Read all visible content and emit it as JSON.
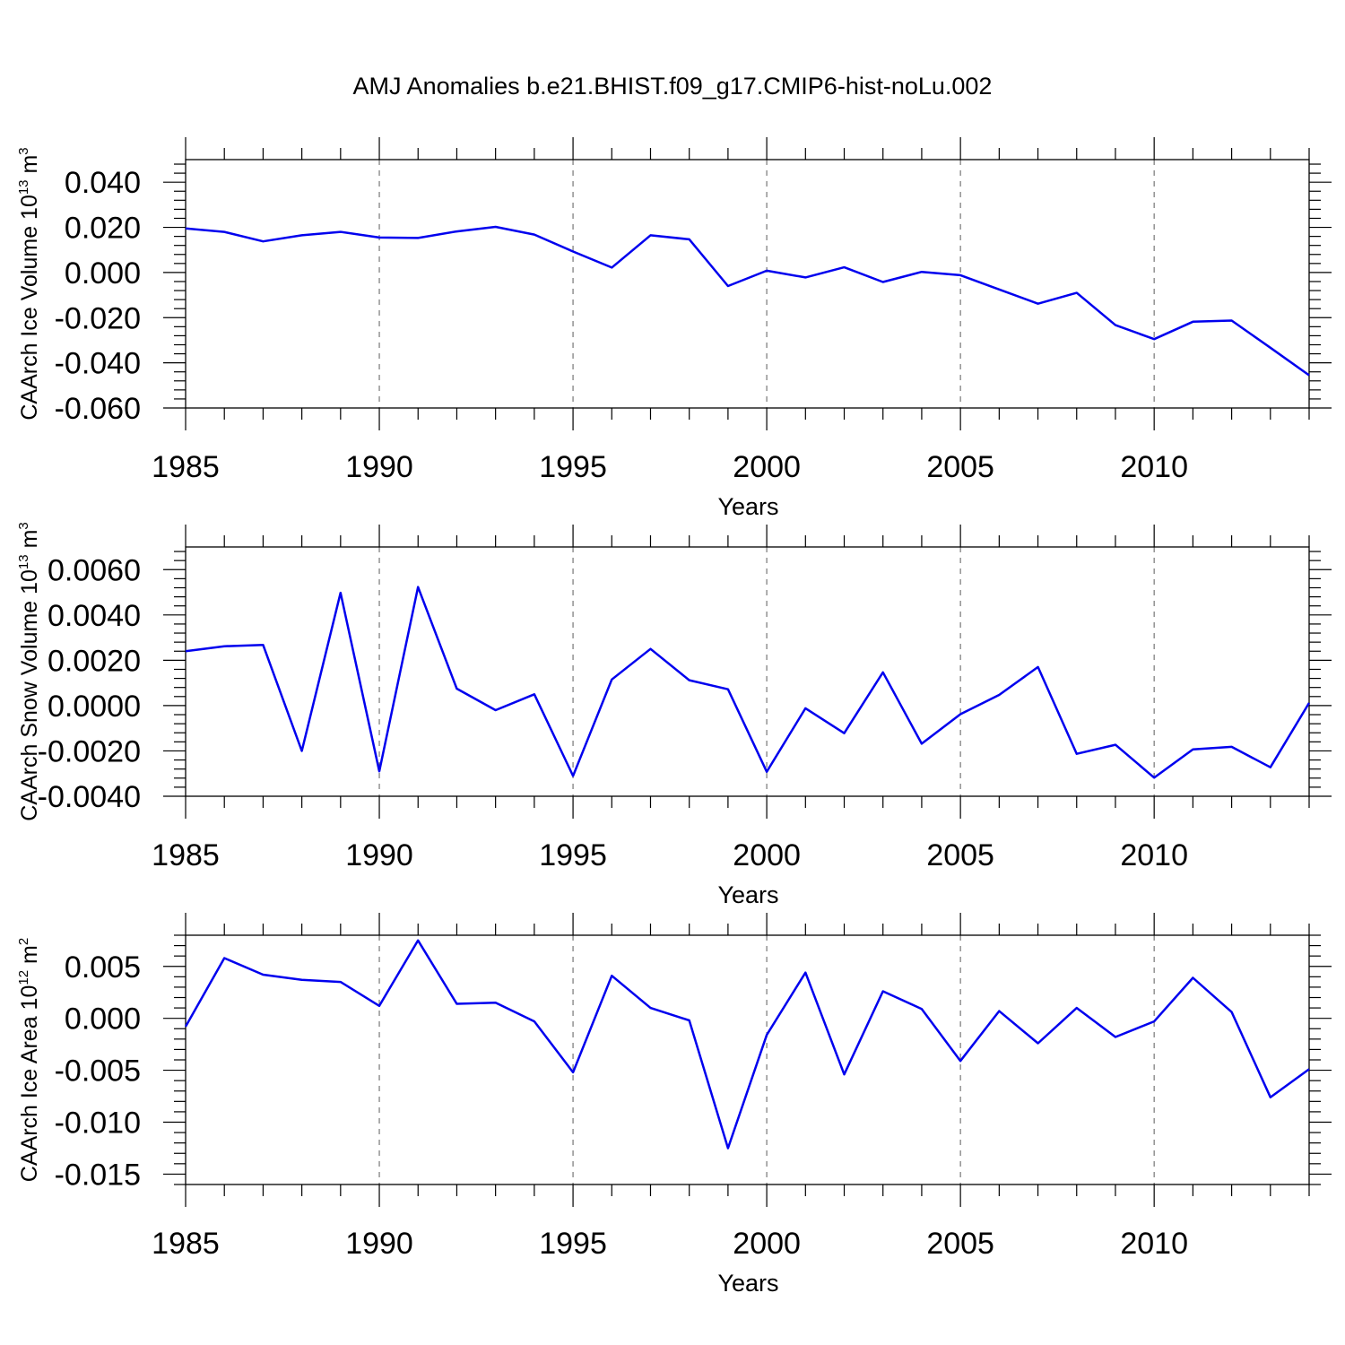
{
  "chart_data": {
    "title": "AMJ Anomalies b.e21.BHIST.f09_g17.CMIP6-hist-noLu.002",
    "line_color": "#0000ee",
    "panels": [
      {
        "type": "line",
        "ylabel": "CAArch Ice Volume 10",
        "yunit_exp": "13",
        "yunit_base": "m",
        "yunit_pow": "3",
        "xlabel": "Years",
        "xlim": [
          1985,
          2014
        ],
        "ylim": [
          -0.06,
          0.05
        ],
        "yticks": [
          0.04,
          0.02,
          0.0,
          -0.02,
          -0.04,
          -0.06
        ],
        "ytick_labels": [
          "0.040",
          "0.020",
          "0.000",
          "-0.020",
          "-0.040",
          "-0.060"
        ],
        "xticks": [
          1985,
          1990,
          1995,
          2000,
          2005,
          2010
        ],
        "xtick_labels": [
          "1985",
          "1990",
          "1995",
          "2000",
          "2005",
          "2010"
        ],
        "x": [
          1985,
          1986,
          1987,
          1988,
          1989,
          1990,
          1991,
          1992,
          1993,
          1994,
          1995,
          1996,
          1997,
          1998,
          1999,
          2000,
          2001,
          2002,
          2003,
          2004,
          2005,
          2006,
          2007,
          2008,
          2009,
          2010,
          2011,
          2012,
          2013,
          2014
        ],
        "y": [
          0.0195,
          0.018,
          0.0138,
          0.0165,
          0.018,
          0.0155,
          0.0153,
          0.0182,
          0.0202,
          0.0168,
          0.0093,
          0.0022,
          0.0165,
          0.0147,
          -0.006,
          0.0008,
          -0.0022,
          0.0023,
          -0.0042,
          0.0003,
          -0.0012,
          -0.0075,
          -0.0138,
          -0.009,
          -0.0233,
          -0.0295,
          -0.0218,
          -0.0213,
          -0.0333,
          -0.0455
        ]
      },
      {
        "type": "line",
        "ylabel": "CAArch Snow Volume 10",
        "yunit_exp": "13",
        "yunit_base": "m",
        "yunit_pow": "3",
        "xlabel": "Years",
        "xlim": [
          1985,
          2014
        ],
        "ylim": [
          -0.004,
          0.007
        ],
        "yticks": [
          0.006,
          0.004,
          0.002,
          0.0,
          -0.002,
          -0.004
        ],
        "ytick_labels": [
          "0.0060",
          "0.0040",
          "0.0020",
          "0.0000",
          "-0.0020",
          "-0.0040"
        ],
        "xticks": [
          1985,
          1990,
          1995,
          2000,
          2005,
          2010
        ],
        "xtick_labels": [
          "1985",
          "1990",
          "1995",
          "2000",
          "2005",
          "2010"
        ],
        "x": [
          1985,
          1986,
          1987,
          1988,
          1989,
          1990,
          1991,
          1992,
          1993,
          1994,
          1995,
          1996,
          1997,
          1998,
          1999,
          2000,
          2001,
          2002,
          2003,
          2004,
          2005,
          2006,
          2007,
          2008,
          2009,
          2010,
          2011,
          2012,
          2013,
          2014
        ],
        "y": [
          0.0024,
          0.00262,
          0.00268,
          -0.002,
          0.00498,
          -0.0029,
          0.00523,
          0.00075,
          -0.0002,
          0.0005,
          -0.0031,
          0.00115,
          0.0025,
          0.00112,
          0.00072,
          -0.00292,
          -0.00012,
          -0.00122,
          0.00147,
          -0.00168,
          -0.00038,
          0.00047,
          0.0017,
          -0.00213,
          -0.00173,
          -0.00318,
          -0.00193,
          -0.00182,
          -0.00272,
          0.00012
        ]
      },
      {
        "type": "line",
        "ylabel": "CAArch Ice Area 10",
        "yunit_exp": "12",
        "yunit_base": "m",
        "yunit_pow": "2",
        "xlabel": "Years",
        "xlim": [
          1985,
          2014
        ],
        "ylim": [
          -0.016,
          0.008
        ],
        "yticks": [
          0.005,
          0.0,
          -0.005,
          -0.01,
          -0.015
        ],
        "ytick_labels": [
          "0.005",
          "0.000",
          "-0.005",
          "-0.010",
          "-0.015"
        ],
        "xticks": [
          1985,
          1990,
          1995,
          2000,
          2005,
          2010
        ],
        "xtick_labels": [
          "1985",
          "1990",
          "1995",
          "2000",
          "2005",
          "2010"
        ],
        "x": [
          1985,
          1986,
          1987,
          1988,
          1989,
          1990,
          1991,
          1992,
          1993,
          1994,
          1995,
          1996,
          1997,
          1998,
          1999,
          2000,
          2001,
          2002,
          2003,
          2004,
          2005,
          2006,
          2007,
          2008,
          2009,
          2010,
          2011,
          2012,
          2013,
          2014
        ],
        "y": [
          -0.0008,
          0.0058,
          0.0042,
          0.0037,
          0.0035,
          0.0012,
          0.0075,
          0.0014,
          0.0015,
          -0.0003,
          -0.0052,
          0.0041,
          0.001,
          -0.0002,
          -0.0125,
          -0.0016,
          0.0044,
          -0.0054,
          0.0026,
          0.0009,
          -0.0041,
          0.0007,
          -0.0024,
          0.001,
          -0.0018,
          -0.0003,
          0.0039,
          0.0006,
          -0.0076,
          -0.0049
        ]
      }
    ]
  }
}
